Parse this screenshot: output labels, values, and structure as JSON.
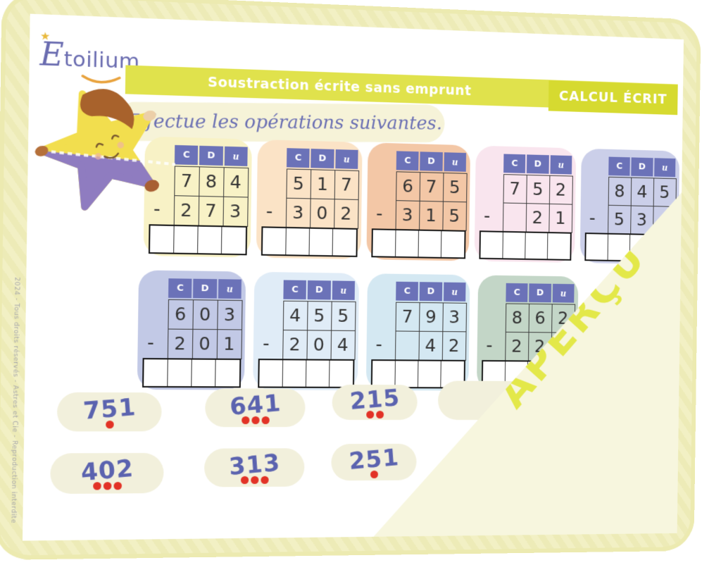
{
  "brand": {
    "initial": "E",
    "rest": "toilium",
    "star": "★"
  },
  "banner": {
    "title": "Soustraction écrite sans emprunt",
    "category": "CALCUL ÉCRIT"
  },
  "instruction": "Effectue les opérations suivantes.",
  "column_headers": [
    "C",
    "D",
    "u"
  ],
  "minus": "-",
  "preview": {
    "label": "APERÇU"
  },
  "copyright": "2024 - Tous droits réservés - Astres et Cie - Reproduction interdite",
  "colors": {
    "banner": "#e0e24c",
    "badge": "#d6da30",
    "column_header": "#6b72b8",
    "accent_purple": "#6a6cb0",
    "dot_red": "#e23226",
    "preview_yellow": "#e3e849"
  },
  "problems": [
    {
      "bg": "#f8f2c6",
      "minuend": [
        "7",
        "8",
        "4"
      ],
      "subtrahend": [
        "2",
        "7",
        "3"
      ]
    },
    {
      "bg": "#fbe3c6",
      "minuend": [
        "5",
        "1",
        "7"
      ],
      "subtrahend": [
        "3",
        "0",
        "2"
      ]
    },
    {
      "bg": "#f3c7a6",
      "minuend": [
        "6",
        "7",
        "5"
      ],
      "subtrahend": [
        "3",
        "1",
        "5"
      ]
    },
    {
      "bg": "#f9e5ee",
      "minuend": [
        "7",
        "5",
        "2"
      ],
      "subtrahend": [
        "",
        "2",
        "1"
      ]
    },
    {
      "bg": "#cbcfe9",
      "minuend": [
        "8",
        "4",
        "5"
      ],
      "subtrahend": [
        "5",
        "3",
        ""
      ]
    },
    {
      "bg": "#c2c9e6",
      "minuend": [
        "6",
        "0",
        "3"
      ],
      "subtrahend": [
        "2",
        "0",
        "1"
      ]
    },
    {
      "bg": "#e0ecf7",
      "minuend": [
        "4",
        "5",
        "5"
      ],
      "subtrahend": [
        "2",
        "0",
        "4"
      ]
    },
    {
      "bg": "#d4e8f2",
      "minuend": [
        "7",
        "9",
        "3"
      ],
      "subtrahend": [
        "",
        "4",
        "2"
      ]
    },
    {
      "bg": "#c3d6c7",
      "minuend": [
        "8",
        "6",
        "2"
      ],
      "subtrahend": [
        "2",
        "2",
        ""
      ]
    }
  ],
  "answers": {
    "row1": [
      {
        "value": "751",
        "dots": 1
      },
      {
        "value": "641",
        "dots": 3
      },
      {
        "value": "215",
        "dots": 2
      },
      {
        "value": "",
        "dots": 0
      }
    ],
    "row2": [
      {
        "value": "402",
        "dots": 3
      },
      {
        "value": "313",
        "dots": 3
      },
      {
        "value": "251",
        "dots": 1
      }
    ]
  }
}
